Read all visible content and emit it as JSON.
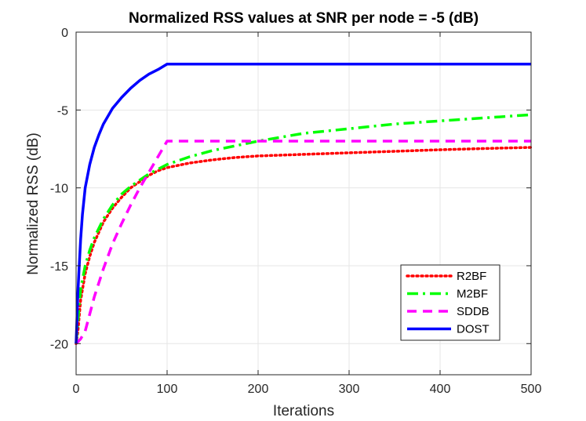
{
  "chart_data": {
    "type": "line",
    "title": "Normalized RSS values at SNR per node = -5 (dB)",
    "xlabel": "Iterations",
    "ylabel": "Normalized RSS (dB)",
    "xlim": [
      0,
      500
    ],
    "ylim": [
      -22,
      0
    ],
    "xticks": [
      0,
      100,
      200,
      300,
      400,
      500
    ],
    "yticks": [
      0,
      -5,
      -10,
      -15,
      -20
    ],
    "grid": true,
    "legend_position": "bottom-right",
    "series": [
      {
        "name": "R2BF",
        "color": "#ff0000",
        "style": "dotted",
        "x": [
          0,
          2,
          5,
          10,
          15,
          20,
          30,
          40,
          50,
          60,
          70,
          80,
          90,
          100,
          125,
          150,
          175,
          200,
          250,
          300,
          350,
          400,
          450,
          500
        ],
        "y": [
          -20,
          -19.2,
          -17.2,
          -15.5,
          -14.4,
          -13.5,
          -12.2,
          -11.3,
          -10.6,
          -10.0,
          -9.6,
          -9.2,
          -8.9,
          -8.7,
          -8.4,
          -8.2,
          -8.05,
          -7.95,
          -7.85,
          -7.75,
          -7.65,
          -7.55,
          -7.47,
          -7.4
        ]
      },
      {
        "name": "M2BF",
        "color": "#00ff00",
        "style": "dashdot",
        "x": [
          0,
          2,
          5,
          10,
          15,
          20,
          30,
          40,
          50,
          60,
          70,
          80,
          90,
          100,
          125,
          150,
          175,
          200,
          250,
          300,
          350,
          400,
          450,
          500
        ],
        "y": [
          -20,
          -18.5,
          -16.5,
          -15.0,
          -14.0,
          -13.2,
          -12.0,
          -11.1,
          -10.4,
          -9.9,
          -9.5,
          -9.1,
          -8.8,
          -8.5,
          -8.0,
          -7.6,
          -7.3,
          -7.0,
          -6.5,
          -6.2,
          -5.9,
          -5.7,
          -5.5,
          -5.3
        ]
      },
      {
        "name": "SDDB",
        "color": "#ff00ff",
        "style": "dashed",
        "x": [
          0,
          5,
          10,
          20,
          30,
          40,
          50,
          60,
          70,
          80,
          90,
          100,
          150,
          200,
          300,
          400,
          500
        ],
        "y": [
          -20,
          -19.7,
          -19.2,
          -17.0,
          -15.2,
          -13.6,
          -12.3,
          -11.1,
          -10.0,
          -9.0,
          -8.0,
          -7.0,
          -7.0,
          -7.0,
          -7.0,
          -7.0,
          -7.0
        ]
      },
      {
        "name": "DOST",
        "color": "#0000ff",
        "style": "solid",
        "x": [
          0,
          1,
          2,
          3,
          5,
          7,
          10,
          15,
          20,
          25,
          30,
          40,
          50,
          60,
          70,
          80,
          90,
          100,
          200,
          300,
          400,
          500
        ],
        "y": [
          -20,
          -18.3,
          -16.7,
          -15.5,
          -13.3,
          -11.7,
          -10.0,
          -8.5,
          -7.4,
          -6.6,
          -5.9,
          -4.9,
          -4.2,
          -3.6,
          -3.1,
          -2.7,
          -2.4,
          -2.05,
          -2.05,
          -2.05,
          -2.05,
          -2.05
        ]
      }
    ]
  }
}
